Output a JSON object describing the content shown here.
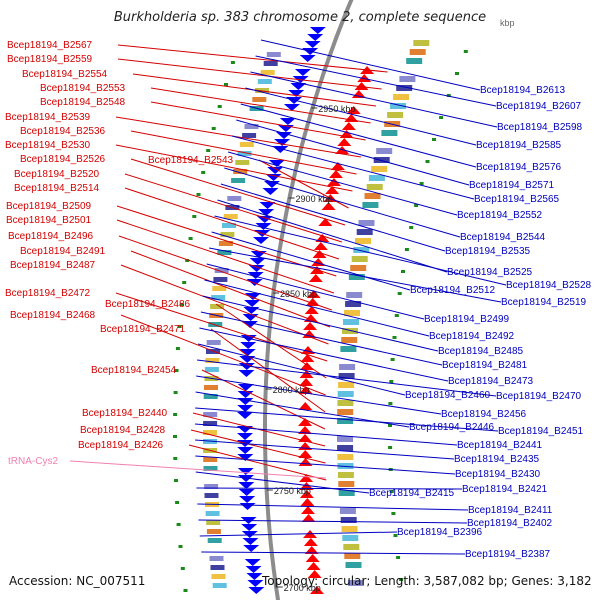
{
  "title": "Burkholderia sp. 383 chromosome 2, complete sequence",
  "accession": "Accession: NC_007511",
  "topology": "Topology: circular; Length: 3,587,082 bp; Genes: 3,182",
  "axis_label_top": "kbp",
  "position_labels": [
    "2950 kbp",
    "2900 kbp",
    "2850 kbp",
    "2800 kbp",
    "2750 kbp",
    "2700 kbp"
  ],
  "left_labels": [
    "Bcep18194_B2567",
    "Bcep18194_B2559",
    "Bcep18194_B2554",
    "Bcep18194_B2553",
    "Bcep18194_B2548",
    "Bcep18194_B2539",
    "Bcep18194_B2536",
    "Bcep18194_B2530",
    "Bcep18194_B2543",
    "Bcep18194_B2526",
    "Bcep18194_B2520",
    "Bcep18194_B2514",
    "Bcep18194_B2509",
    "Bcep18194_B2501",
    "Bcep18194_B2496",
    "Bcep18194_B2491",
    "Bcep18194_B2487",
    "Bcep18194_B2472",
    "Bcep18194_B2486",
    "Bcep18194_B2468",
    "Bcep18194_B2471",
    "Bcep18194_B2454",
    "Bcep18194_B2440",
    "Bcep18194_B2428",
    "Bcep18194_B2426"
  ],
  "trna_label": "tRNA-Cys2",
  "right_labels": [
    "Bcep18194_B2613",
    "Bcep18194_B2607",
    "Bcep18194_B2598",
    "Bcep18194_B2585",
    "Bcep18194_B2576",
    "Bcep18194_B2571",
    "Bcep18194_B2565",
    "Bcep18194_B2552",
    "Bcep18194_B2544",
    "Bcep18194_B2535",
    "Bcep18194_B2525",
    "Bcep18194_B2528",
    "Bcep18194_B2512",
    "Bcep18194_B2519",
    "Bcep18194_B2499",
    "Bcep18194_B2492",
    "Bcep18194_B2485",
    "Bcep18194_B2481",
    "Bcep18194_B2473",
    "Bcep18194_B2460",
    "Bcep18194_B2470",
    "Bcep18194_B2456",
    "Bcep18194_B2446",
    "Bcep18194_B2451",
    "Bcep18194_B2441",
    "Bcep18194_B2435",
    "Bcep18194_B2430",
    "Bcep18194_B2415",
    "Bcep18194_B2421",
    "Bcep18194_B2411",
    "Bcep18194_B2402",
    "Bcep18194_B2396",
    "Bcep18194_B2387"
  ],
  "colors": {
    "left_label": "#d40000",
    "right_label": "#0000c0",
    "trna": "#f080b0",
    "forward_gene": "#ff0000",
    "reverse_gene": "#0000ff",
    "backbone": "#8c8c8c",
    "rna_marker": "#1a8a1a"
  }
}
